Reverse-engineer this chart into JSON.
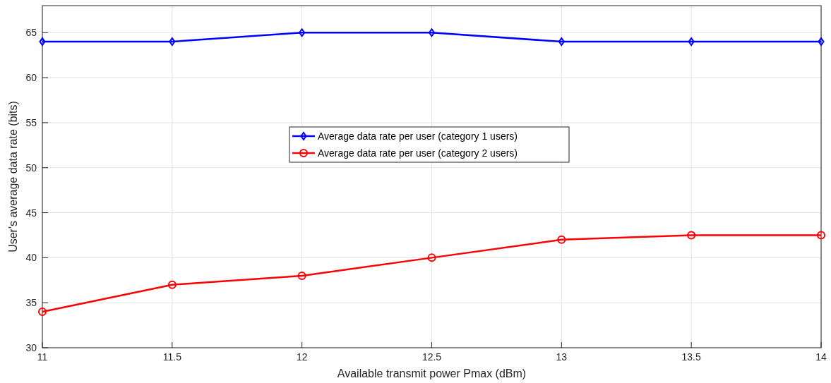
{
  "chart_data": {
    "type": "line",
    "xlabel": "Available transmit power Pmax (dBm)",
    "ylabel": "User's average data rate (bits)",
    "x": [
      11,
      11.5,
      12,
      12.5,
      13,
      13.5,
      14
    ],
    "xlim": [
      11,
      14
    ],
    "xticks": [
      11,
      11.5,
      12,
      12.5,
      13,
      13.5,
      14
    ],
    "ylim": [
      30,
      68
    ],
    "yticks": [
      30,
      35,
      40,
      45,
      50,
      55,
      60,
      65
    ],
    "grid": true,
    "legend": "center",
    "line_style": "solid",
    "series": [
      {
        "name": "Average data rate per user (category 1 users)",
        "color": "#0000ff",
        "marker": "diamond",
        "values": [
          64,
          64,
          65,
          65,
          64,
          64,
          64
        ]
      },
      {
        "name": "Average data rate per user (category 2 users)",
        "color": "#ff0000",
        "marker": "circle",
        "values": [
          34,
          37,
          38,
          40,
          42,
          42.5,
          42.5
        ]
      }
    ]
  }
}
